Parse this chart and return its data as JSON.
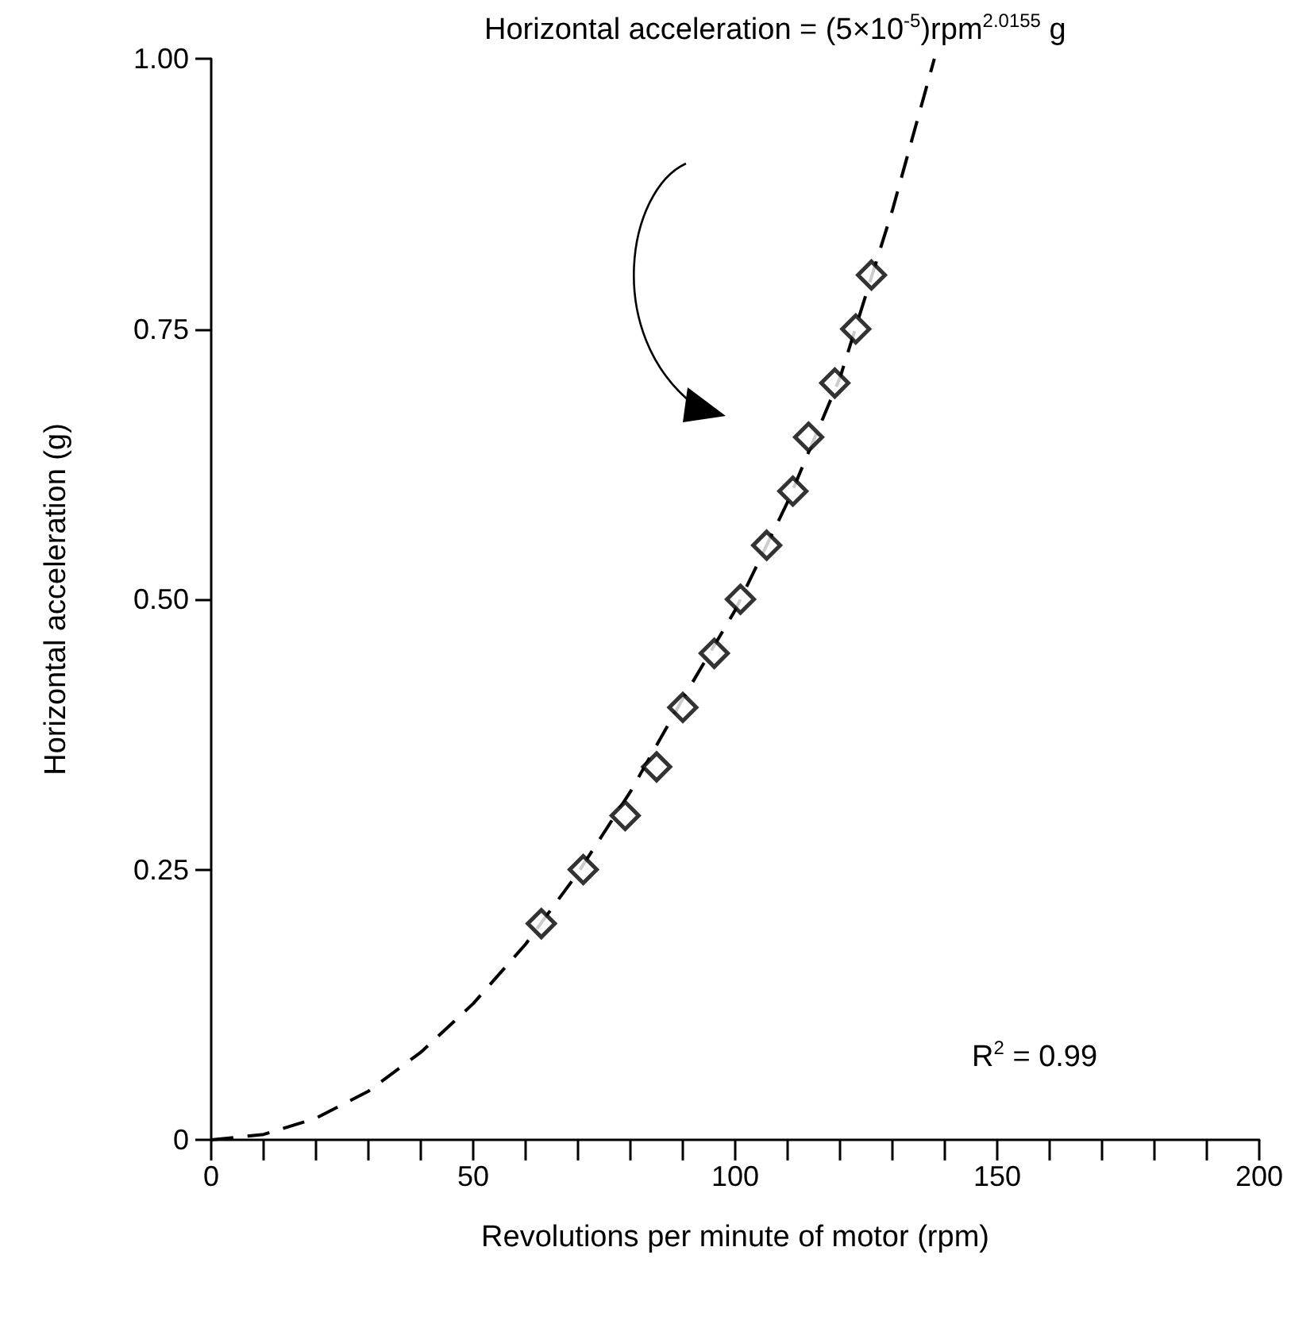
{
  "chart_data": {
    "type": "scatter",
    "xlabel": "Revolutions per minute of motor (rpm)",
    "ylabel": "Horizontal acceleration (g)",
    "xlim": [
      0,
      200
    ],
    "ylim": [
      0,
      1
    ],
    "xticks": [
      0,
      {
        "value": 10,
        "label": null
      },
      {
        "value": 20,
        "label": null
      },
      {
        "value": 30,
        "label": null
      },
      {
        "value": 40,
        "label": null
      },
      50,
      {
        "value": 60,
        "label": null
      },
      {
        "value": 70,
        "label": null
      },
      {
        "value": 80,
        "label": null
      },
      {
        "value": 90,
        "label": null
      },
      100,
      {
        "value": 110,
        "label": null
      },
      {
        "value": 120,
        "label": null
      },
      {
        "value": 130,
        "label": null
      },
      {
        "value": 140,
        "label": null
      },
      150,
      {
        "value": 160,
        "label": null
      },
      {
        "value": 170,
        "label": null
      },
      {
        "value": 180,
        "label": null
      },
      {
        "value": 190,
        "label": null
      },
      200
    ],
    "yticks": [
      0,
      {
        "value": 0.25,
        "label": "0.25"
      },
      {
        "value": 0.5,
        "label": "0.50"
      },
      {
        "value": 0.75,
        "label": "0.75"
      },
      {
        "value": 1,
        "label": "1.00"
      }
    ],
    "grid": false,
    "series": [
      {
        "type": "line",
        "color": "#000000",
        "marker": "none",
        "line_style": "dashed",
        "x": [
          0,
          10,
          20,
          30,
          40,
          50,
          60,
          70,
          80,
          90,
          100,
          110,
          120,
          130,
          138
        ],
        "values": [
          0,
          0.005,
          0.02,
          0.045,
          0.081,
          0.126,
          0.181,
          0.247,
          0.322,
          0.408,
          0.49,
          0.59,
          0.705,
          0.86,
          1.0
        ]
      },
      {
        "color": "#000000",
        "marker": "diamond",
        "x": [
          63,
          71,
          79,
          85,
          90,
          96,
          101,
          106,
          111,
          114,
          119,
          123,
          126
        ],
        "values": [
          0.2,
          0.25,
          0.3,
          0.345,
          0.4,
          0.45,
          0.5,
          0.55,
          0.6,
          0.65,
          0.7,
          0.75,
          0.8
        ]
      }
    ],
    "annotations": [
      "Horizontal acceleration = (5×10$^{-5}$)rpm$^{2.0155}$ g",
      "R$^{2}$ = 0.99"
    ]
  }
}
